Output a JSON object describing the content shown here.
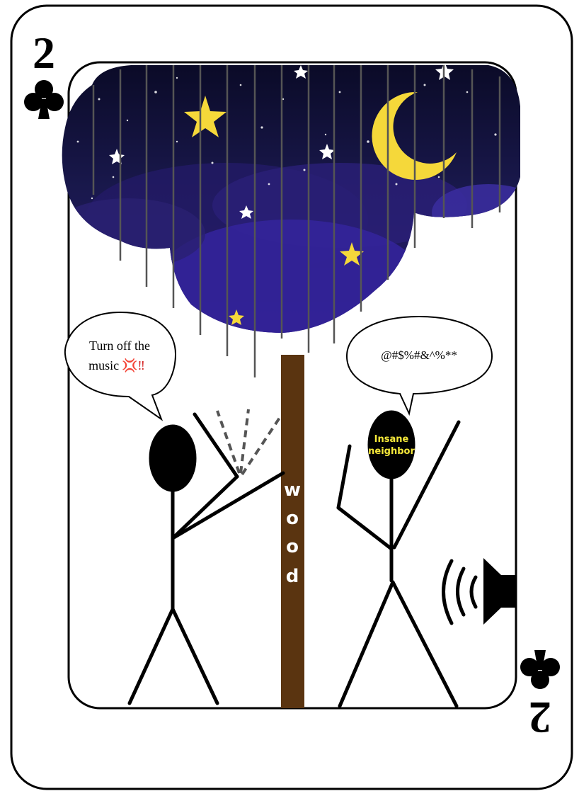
{
  "card": {
    "rank": "2",
    "suit_icon": "club-icon",
    "suit_color": "#000000",
    "border_color": "#000000",
    "background": "#ffffff"
  },
  "scene": {
    "sky_colors": [
      "#0c0c2c",
      "#1a1850",
      "#2a1f7a",
      "#3a2a9a"
    ],
    "star_color": "#f5d83a",
    "moon_color": "#f5d83a",
    "rain_color": "#444444",
    "post": {
      "label_letters": [
        "w",
        "o",
        "o",
        "d"
      ],
      "color": "#5a3410",
      "text_color": "#ffffff"
    },
    "left_bubble": {
      "line1": "Turn off the",
      "line2": "music",
      "emoji": "💢‼"
    },
    "right_bubble": {
      "text": "@#$%#&^%**"
    },
    "neighbor": {
      "head_line1": "Insane",
      "head_line2": "neighbor",
      "text_color": "#f5e83a"
    },
    "speaker_icon": "speaker-sound-icon"
  }
}
